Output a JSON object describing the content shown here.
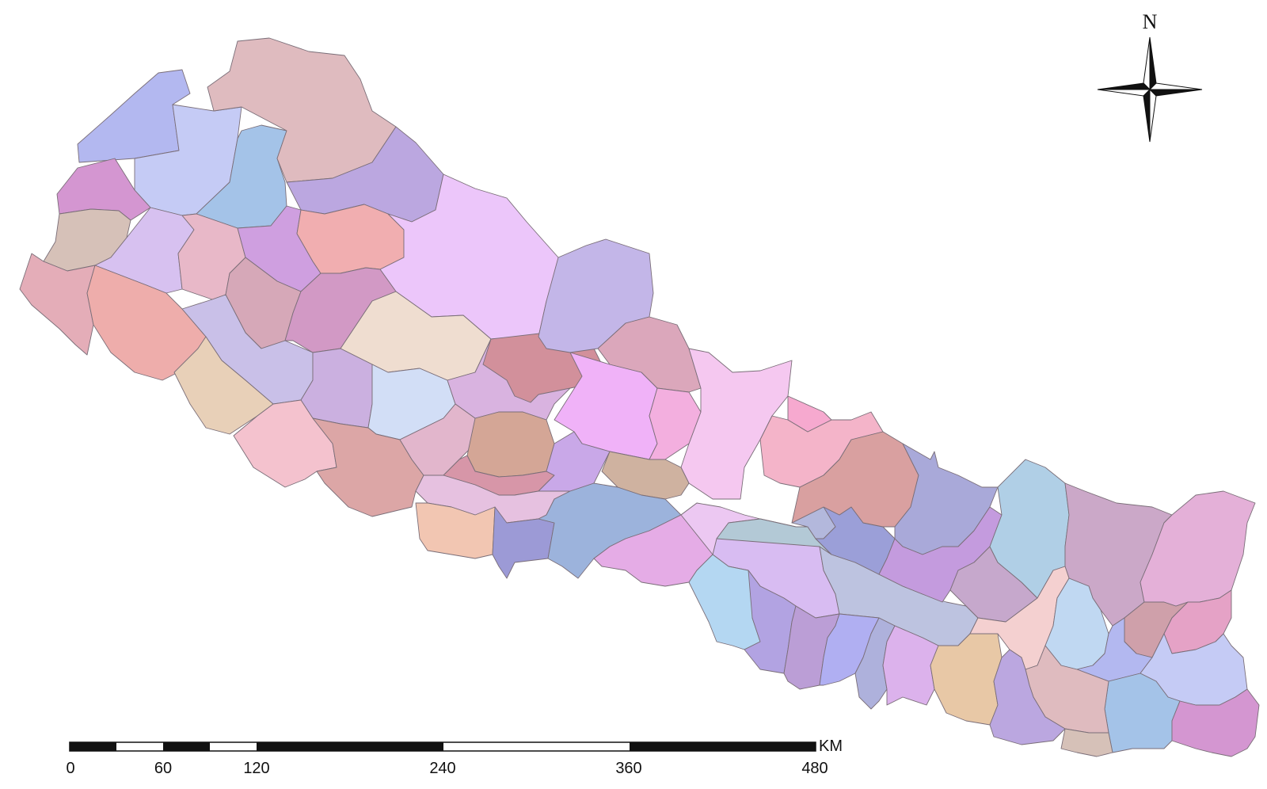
{
  "compass": {
    "label": "N"
  },
  "scale_bar": {
    "unit": "KM",
    "ticks": [
      "0",
      "60",
      "120",
      "240",
      "360",
      "480"
    ]
  },
  "palette": [
    "#b3b8f0",
    "#c5cbf5",
    "#a4c3e8",
    "#dfbbbf",
    "#d496d1",
    "#bba7e0",
    "#d6c1b8",
    "#d7c1f0",
    "#e8b8c8",
    "#cf9fe0",
    "#f1aeb0",
    "#ecc6fa",
    "#e4adb8",
    "#eeadab",
    "#d6a8b8",
    "#d299c5",
    "#c9c0e8",
    "#efddd0",
    "#cbb0e0",
    "#e8d0b8",
    "#d2def6",
    "#d9b3e0",
    "#d2909b",
    "#f0b2f8",
    "#c3b6e8",
    "#dba7bb",
    "#f5c8f0",
    "#f3afdf",
    "#f4b4c9",
    "#f6a9cf",
    "#f4c2ce",
    "#dca6a6",
    "#e2b6cc",
    "#d4a696",
    "#d796a8",
    "#c9a8e8",
    "#cfb2a0",
    "#e6c1e0",
    "#f2c6b2",
    "#9c9ad6",
    "#9cb3dc",
    "#e5ace6",
    "#d8bcf2",
    "#b4d7f2",
    "#b2a3e2",
    "#bb9ed6",
    "#bdc3e0",
    "#b0aff2",
    "#aeb1dc",
    "#dcb2ec",
    "#e8c8a6",
    "#ecc8f2",
    "#b3c9d6",
    "#b3b8dc",
    "#9b9fd8",
    "#d9a0a0",
    "#a9a9d9",
    "#c49bde",
    "#c6a8cc",
    "#b0cfe6",
    "#cba8c8",
    "#f4d0d0",
    "#c0d8f2",
    "#cfa0aa",
    "#e4b0d8",
    "#e5a2c6"
  ]
}
